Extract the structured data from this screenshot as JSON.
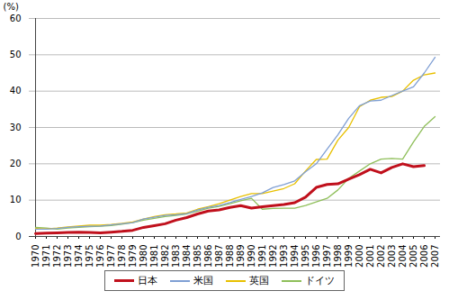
{
  "chart_data": {
    "type": "line",
    "y_label": "(%)",
    "categories": [
      "1970",
      "1971",
      "1972",
      "1973",
      "1974",
      "1975",
      "1976",
      "1977",
      "1978",
      "1979",
      "1980",
      "1981",
      "1982",
      "1983",
      "1984",
      "1985",
      "1986",
      "1987",
      "1988",
      "1989",
      "1990",
      "1991",
      "1992",
      "1993",
      "1994",
      "1995",
      "1996",
      "1997",
      "1998",
      "1999",
      "2000",
      "2001",
      "2002",
      "2003",
      "2004",
      "2005",
      "2006",
      "2007"
    ],
    "series": [
      {
        "name": "日本",
        "color": "#c0101c",
        "values": [
          0.8,
          0.9,
          1.0,
          1.1,
          1.2,
          1.1,
          1.0,
          1.2,
          1.4,
          1.7,
          2.5,
          3.0,
          3.5,
          4.5,
          5.2,
          6.2,
          7.0,
          7.3,
          8.0,
          8.5,
          7.8,
          8.2,
          8.5,
          8.8,
          9.3,
          10.8,
          13.5,
          14.3,
          14.5,
          15.8,
          17.0,
          18.5,
          17.5,
          19.0,
          20.0,
          19.2,
          19.5,
          null
        ]
      },
      {
        "name": "米国",
        "color": "#7f9fd4",
        "values": [
          2.0,
          2.0,
          2.2,
          2.5,
          2.7,
          2.8,
          2.9,
          3.2,
          3.5,
          3.8,
          4.8,
          5.3,
          5.8,
          6.0,
          6.3,
          7.3,
          8.0,
          8.5,
          9.3,
          10.2,
          11.0,
          12.0,
          13.5,
          14.3,
          15.3,
          17.8,
          20.0,
          24.0,
          28.0,
          32.5,
          36.0,
          37.3,
          37.5,
          38.8,
          40.0,
          41.2,
          45.0,
          49.3
        ]
      },
      {
        "name": "英国",
        "color": "#e8c000",
        "values": [
          2.2,
          2.1,
          2.3,
          2.6,
          2.9,
          3.1,
          3.1,
          3.3,
          3.6,
          4.0,
          4.8,
          5.5,
          6.0,
          6.2,
          6.5,
          7.5,
          8.2,
          9.0,
          10.0,
          11.0,
          11.8,
          11.8,
          12.5,
          13.2,
          14.5,
          18.0,
          21.2,
          21.3,
          26.5,
          30.0,
          35.7,
          37.5,
          38.3,
          38.5,
          40.0,
          43.0,
          44.5,
          45.0
        ]
      },
      {
        "name": "ドイツ",
        "color": "#8fbf5a",
        "values": [
          2.5,
          2.3,
          2.0,
          2.3,
          2.5,
          2.7,
          2.8,
          3.0,
          3.4,
          3.8,
          4.5,
          5.0,
          5.5,
          5.8,
          6.2,
          7.0,
          7.8,
          8.3,
          9.0,
          9.8,
          10.5,
          7.5,
          7.7,
          7.8,
          7.8,
          8.5,
          9.5,
          10.5,
          12.8,
          16.0,
          18.0,
          20.0,
          21.3,
          21.5,
          21.3,
          26.0,
          30.3,
          33.0
        ]
      }
    ],
    "ylim": [
      0,
      60
    ],
    "yticks": [
      0,
      10,
      20,
      30,
      40,
      50,
      60
    ],
    "grid": true,
    "legend": "bottom"
  }
}
